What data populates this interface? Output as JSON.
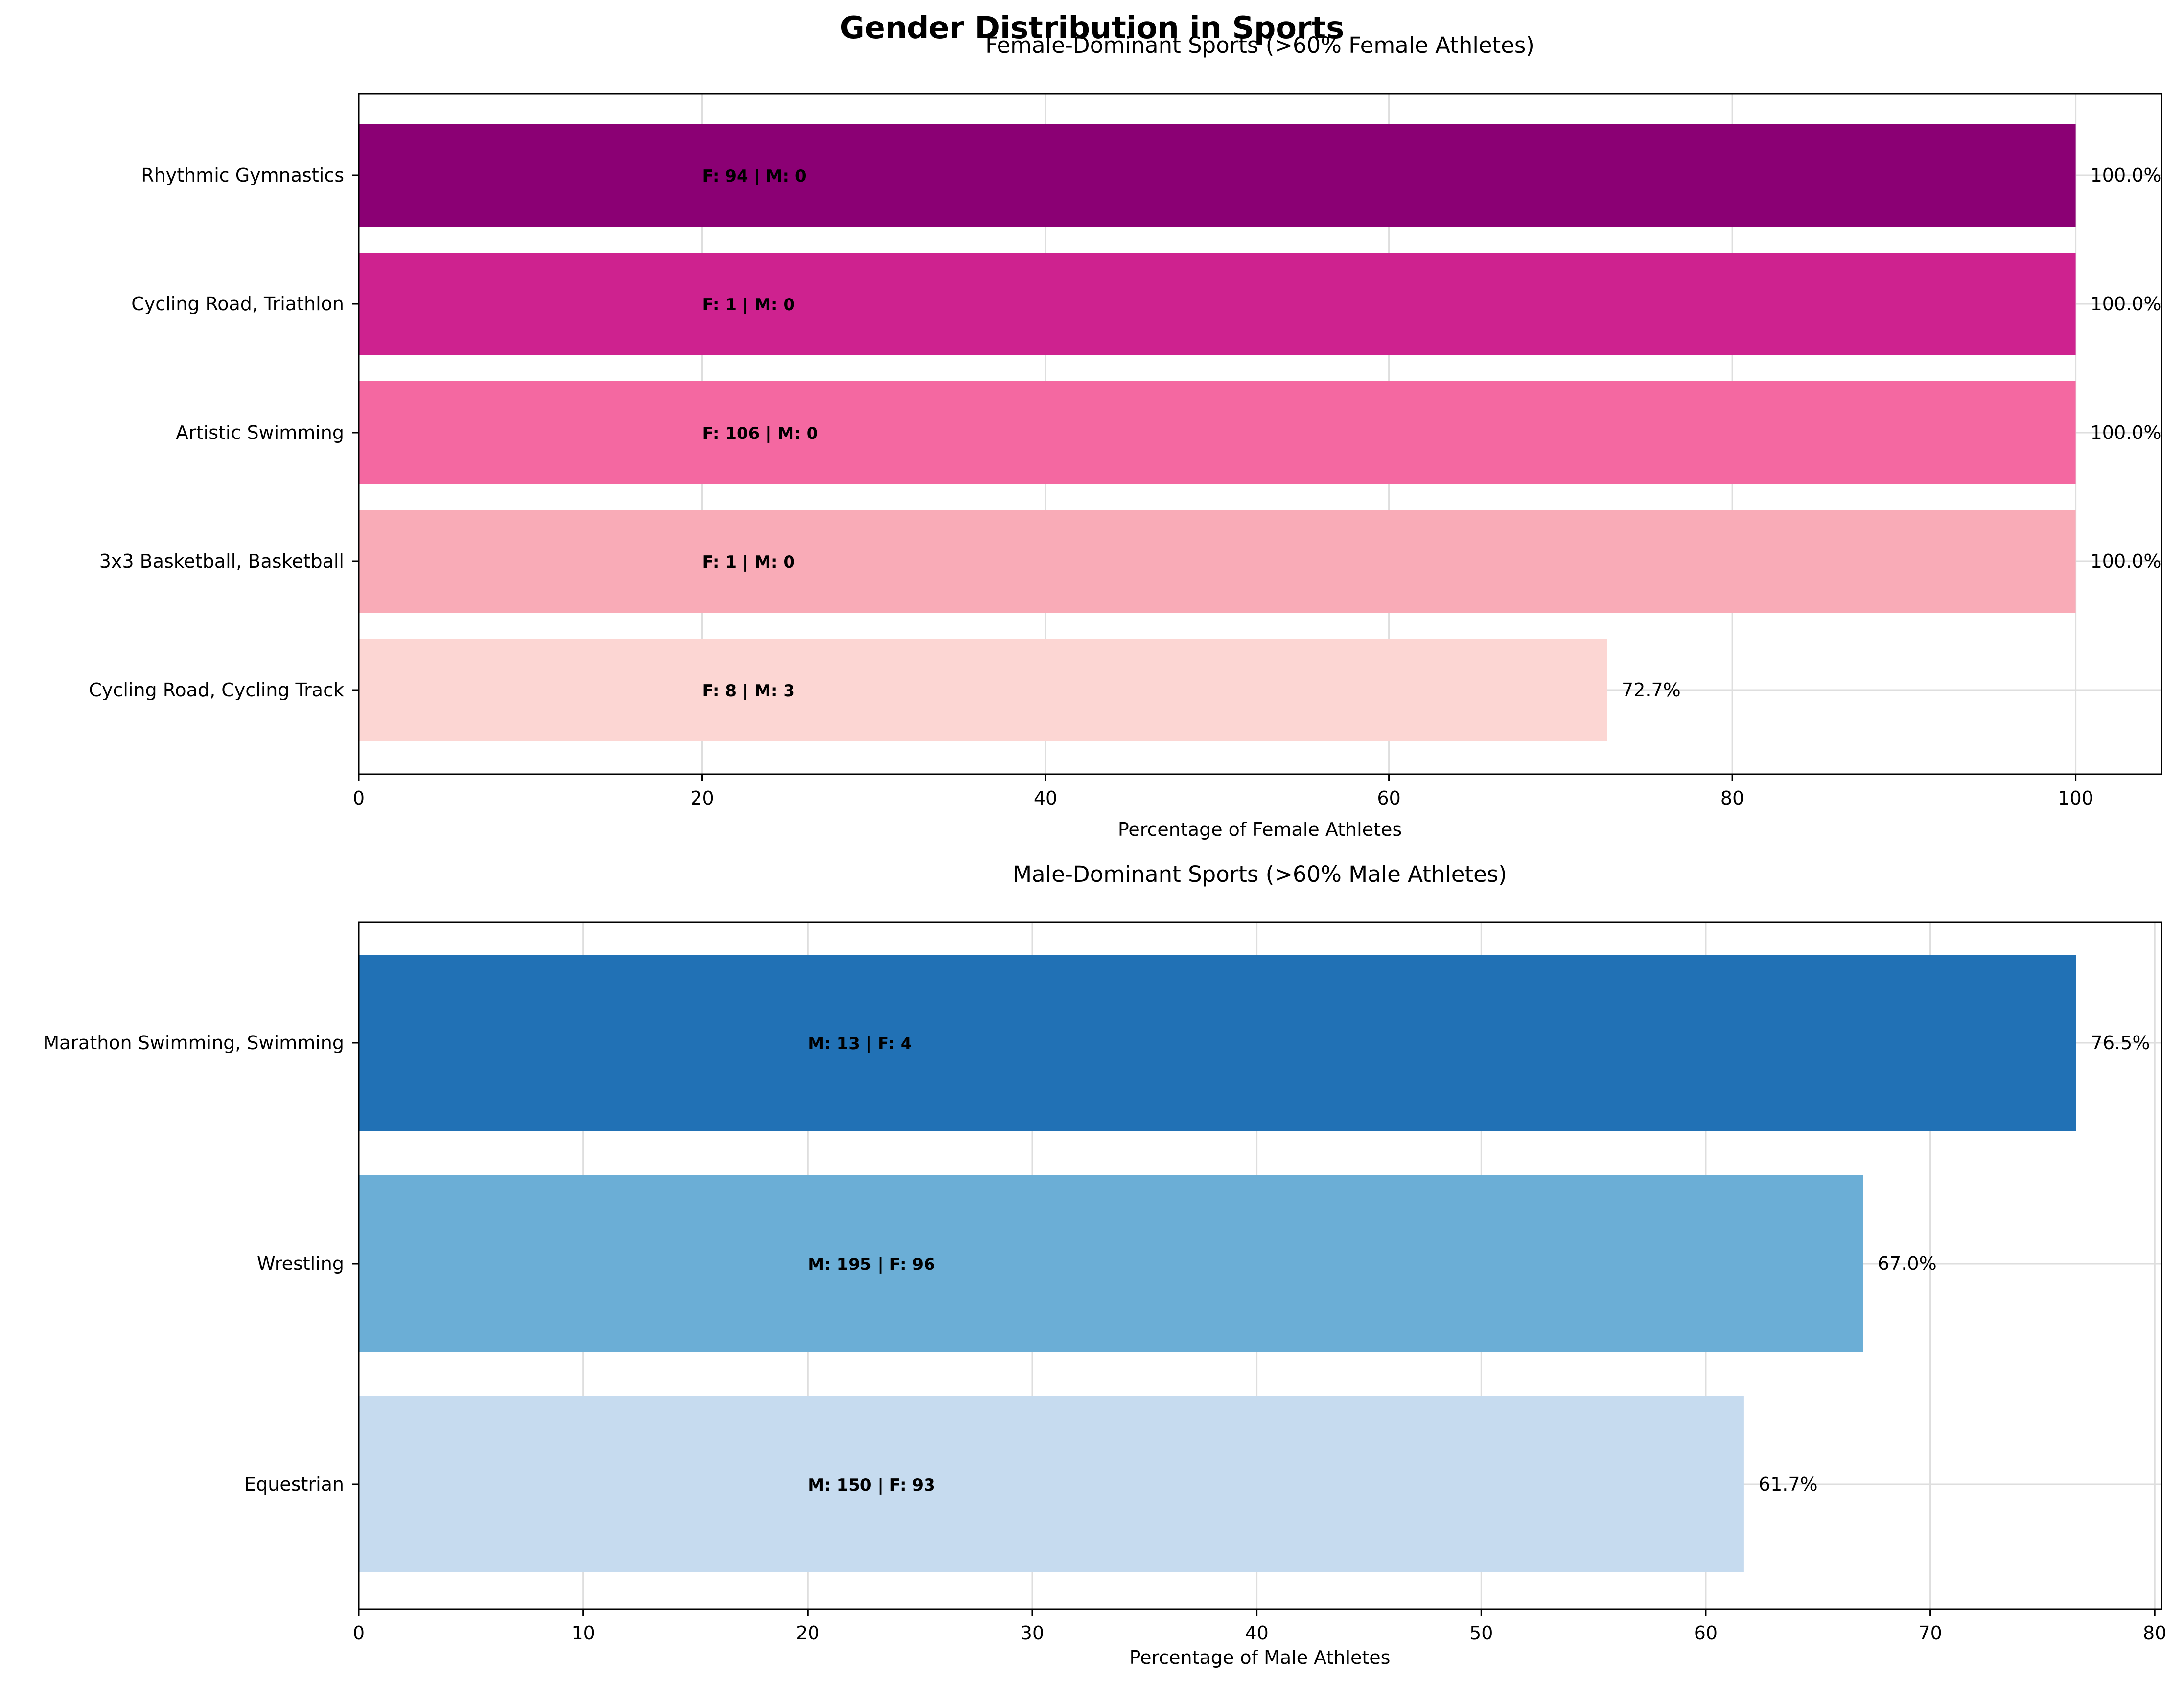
{
  "figure": {
    "title": "Gender Distribution in Sports"
  },
  "chart_data": [
    {
      "type": "bar",
      "orientation": "horizontal",
      "title": "Female-Dominant Sports (>60% Female Athletes)",
      "xlabel": "Percentage of Female Athletes",
      "ylabel": "",
      "xlim": [
        0,
        105
      ],
      "xticks": [
        0,
        20,
        40,
        60,
        80,
        100
      ],
      "grid": true,
      "label_anchor_x": 20,
      "categories": [
        "Rhythmic Gymnastics",
        "Cycling Road, Triathlon",
        "Artistic Swimming",
        "3x3 Basketball, Basketball",
        "Cycling Road, Cycling Track"
      ],
      "values": [
        100.0,
        100.0,
        100.0,
        100.0,
        72.7
      ],
      "value_labels": [
        "100.0%",
        "100.0%",
        "100.0%",
        "100.0%",
        "72.7%"
      ],
      "count_labels": [
        "F: 94 | M: 0",
        "F: 1 | M: 0",
        "F: 106 | M: 0",
        "F: 1 | M: 0",
        "F: 8 | M: 3"
      ],
      "colors": [
        "#8b0074",
        "#ce228f",
        "#f468a1",
        "#f9abb7",
        "#fcd6d3"
      ]
    },
    {
      "type": "bar",
      "orientation": "horizontal",
      "title": "Male-Dominant Sports (>60% Male Athletes)",
      "xlabel": "Percentage of Male Athletes",
      "ylabel": "",
      "xlim": [
        0,
        80.3
      ],
      "xticks": [
        0,
        10,
        20,
        30,
        40,
        50,
        60,
        70,
        80
      ],
      "grid": true,
      "label_anchor_x": 20,
      "categories": [
        "Marathon Swimming, Swimming",
        "Wrestling",
        "Equestrian"
      ],
      "values": [
        76.5,
        67.0,
        61.7
      ],
      "value_labels": [
        "76.5%",
        "67.0%",
        "61.7%"
      ],
      "count_labels": [
        "M: 13 | F: 4",
        "M: 195 | F: 96",
        "M: 150 | F: 93"
      ],
      "colors": [
        "#2171b5",
        "#6baed6",
        "#c6dbef"
      ]
    }
  ]
}
